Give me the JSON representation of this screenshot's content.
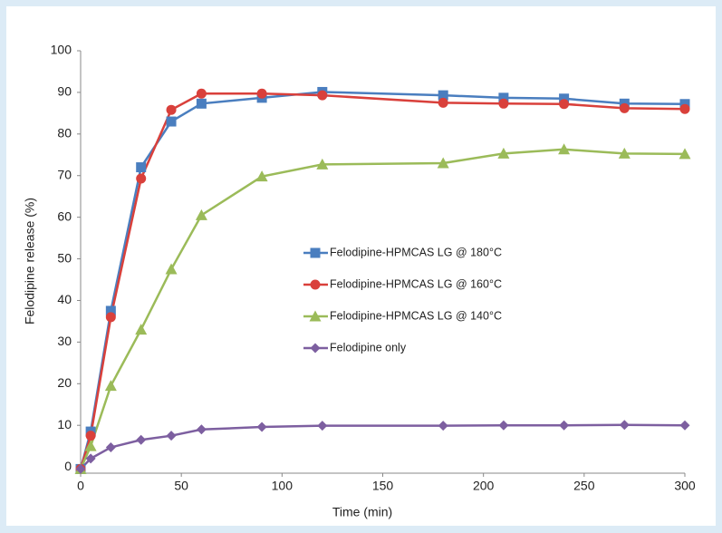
{
  "chart_data": {
    "type": "line",
    "x_label": "Time (min)",
    "y_label": "Felodipine release (%)",
    "x": [
      0,
      5,
      15,
      30,
      45,
      60,
      90,
      120,
      180,
      210,
      240,
      270,
      300
    ],
    "xlim": [
      0,
      300
    ],
    "xticks": [
      0,
      50,
      100,
      150,
      200,
      250,
      300
    ],
    "ylim": [
      -1.5,
      100
    ],
    "yticks": [
      0,
      10,
      20,
      30,
      40,
      50,
      60,
      70,
      80,
      90,
      100
    ],
    "grid": false,
    "series": [
      {
        "name": "Felodipine-HPMCAS LG @ 180°C",
        "color": "#4a7ebf",
        "marker": "square",
        "values": [
          -0.5,
          8.5,
          37.5,
          72,
          83,
          87.3,
          88.7,
          90.1,
          89.3,
          88.7,
          88.5,
          87.3,
          87.2
        ]
      },
      {
        "name": "Felodipine-HPMCAS LG @ 160°C",
        "color": "#d9403b",
        "marker": "circle",
        "values": [
          -0.5,
          7.5,
          36,
          69.3,
          85.8,
          89.7,
          89.7,
          89.3,
          87.5,
          87.3,
          87.2,
          86.2,
          86
        ]
      },
      {
        "name": "Felodipine-HPMCAS LG @ 140°C",
        "color": "#9bbb59",
        "marker": "triangle",
        "values": [
          -0.5,
          5,
          19.5,
          33,
          47.5,
          60.5,
          69.8,
          72.7,
          73,
          75.3,
          76.3,
          75.3,
          75.2
        ]
      },
      {
        "name": "Felodipine only",
        "color": "#7d5fa0",
        "marker": "diamond",
        "values": [
          -0.5,
          2,
          4.7,
          6.5,
          7.5,
          9,
          9.6,
          9.9,
          9.9,
          10,
          10,
          10.1,
          10
        ]
      }
    ]
  }
}
